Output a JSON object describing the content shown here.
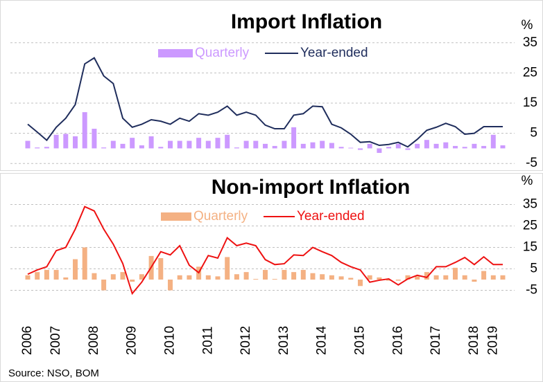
{
  "chart_data": [
    {
      "type": "combo",
      "title": "Import Inflation",
      "unit": "%",
      "ylim": [
        -10,
        40
      ],
      "yticks": [
        35,
        25,
        15,
        5,
        -5
      ],
      "grid": true,
      "series": [
        {
          "name": "Quarterly",
          "type": "bar",
          "color": "#cc99ff",
          "values": [
            2.5,
            0.3,
            0.5,
            4.5,
            4.8,
            4,
            12,
            6.5,
            0.3,
            2.5,
            1.5,
            3.5,
            1,
            4,
            0.5,
            2.5,
            2.5,
            2.5,
            3.5,
            2.5,
            3.5,
            4.5,
            0.3,
            2.5,
            2.5,
            1.5,
            0.8,
            2.5,
            7,
            1.5,
            2,
            2.5,
            1.8,
            0.5,
            0.2,
            -0.5,
            1.5,
            -1.5,
            0.5,
            1.5,
            -0.5,
            1.5,
            2.8,
            1.5,
            2,
            0.8,
            0.5,
            1.5,
            0.8,
            4.5,
            1
          ]
        },
        {
          "name": "Year-ended",
          "type": "line",
          "color": "#1f2d5c",
          "values": [
            8,
            5.4,
            2.7,
            7,
            10,
            14.5,
            28,
            30,
            24,
            21.5,
            10,
            7,
            8,
            9.5,
            9,
            8,
            10,
            9,
            11.5,
            11,
            12,
            14,
            11,
            12,
            11,
            7.7,
            6.5,
            6.5,
            11,
            11.5,
            14,
            13.8,
            8,
            6.8,
            4.7,
            2,
            2.2,
            1,
            1.3,
            2,
            0.5,
            3,
            6,
            7,
            8.3,
            7.2,
            4.7,
            5,
            7.2,
            7.2,
            7.2
          ]
        }
      ]
    },
    {
      "type": "combo",
      "title": "Non-import Inflation",
      "unit": "%",
      "ylim": [
        -10,
        40
      ],
      "yticks": [
        35,
        25,
        15,
        5,
        -5
      ],
      "grid": true,
      "categories": [
        "2006",
        null,
        null,
        "2007",
        null,
        null,
        null,
        "2008",
        null,
        null,
        null,
        "2009",
        null,
        null,
        null,
        "2010",
        null,
        null,
        null,
        "2011",
        null,
        null,
        null,
        "2012",
        null,
        null,
        null,
        "2013",
        null,
        null,
        null,
        "2014",
        null,
        null,
        null,
        "2015",
        null,
        null,
        null,
        "2016",
        null,
        null,
        null,
        "2017",
        null,
        null,
        null,
        "2018",
        null,
        "2019",
        null
      ],
      "series": [
        {
          "name": "Quarterly",
          "type": "bar",
          "color": "#f4b183",
          "values": [
            2,
            3.5,
            4.5,
            4.5,
            1,
            9.5,
            15,
            3,
            -5,
            2.5,
            3.5,
            -1,
            2.5,
            11,
            10,
            -5,
            2,
            2,
            6,
            2,
            1.5,
            10.5,
            2.5,
            3.5,
            0.3,
            4.5,
            0.3,
            4.5,
            3.5,
            4.5,
            3,
            2.5,
            2,
            1.5,
            0.8,
            -3,
            2,
            1,
            -0.5,
            -0.5,
            2,
            1.5,
            3.5,
            2,
            2,
            5.5,
            2,
            -1,
            4,
            2,
            2
          ]
        },
        {
          "name": "Year-ended",
          "type": "line",
          "color": "#ee1111",
          "values": [
            2.5,
            4.5,
            6,
            13.5,
            15,
            23.5,
            34,
            32,
            23.5,
            16.5,
            7.5,
            -6.5,
            -1.2,
            5.8,
            13,
            11.5,
            15.8,
            6.7,
            3.2,
            11.2,
            10,
            19.5,
            15.8,
            17,
            15.8,
            9.3,
            7,
            7.4,
            11.5,
            11.2,
            15,
            13,
            11.2,
            8,
            6,
            4.5,
            -1.2,
            -0.3,
            0.3,
            -2.5,
            0.3,
            2,
            1,
            6,
            6,
            8,
            10.3,
            7,
            10.6,
            7,
            7
          ]
        }
      ]
    }
  ],
  "source": "Source: NSO, BOM"
}
